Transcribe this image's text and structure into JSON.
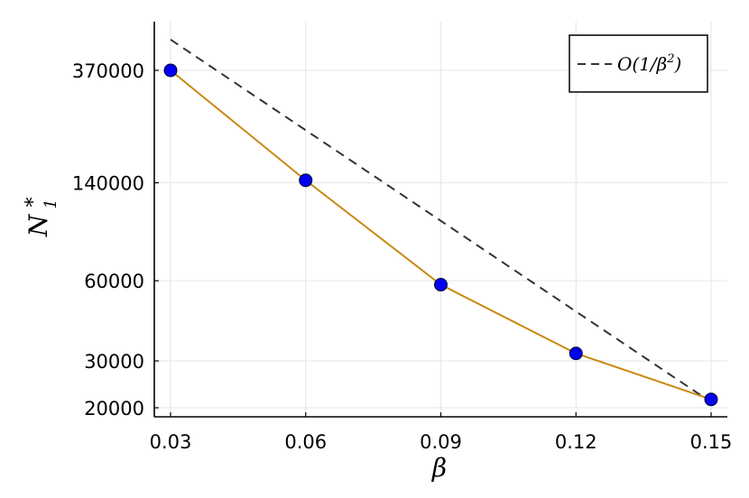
{
  "chart_data": {
    "type": "line",
    "xscale": "linear",
    "yscale": "log",
    "xlabel": "β",
    "ylabel": "N",
    "ylabel_sup": "*",
    "ylabel_sub": "1",
    "xticks": [
      0.03,
      0.06,
      0.09,
      0.12,
      0.15
    ],
    "xtick_labels": [
      "0.03",
      "0.06",
      "0.09",
      "0.12",
      "0.15"
    ],
    "yticks": [
      20000,
      30000,
      60000,
      140000,
      370000
    ],
    "ytick_labels": [
      "20000",
      "30000",
      "60000",
      "140000",
      "370000"
    ],
    "xlim": [
      0.025,
      0.155
    ],
    "ylim": [
      19000,
      520000
    ],
    "grid": true,
    "legend_position": "top-right",
    "series": [
      {
        "style": "solid",
        "color": "#c98810",
        "marker": "circle",
        "marker_color": "#0000f0",
        "x": [
          0.03,
          0.06,
          0.09,
          0.12,
          0.15
        ],
        "y": [
          370000,
          143000,
          58000,
          32000,
          21500
        ]
      },
      {
        "name": "O(1/β²)",
        "name_parts": {
          "prefix": "O(1/β",
          "sup": "2",
          "suffix": ")"
        },
        "style": "dashed",
        "color": "#333333",
        "x": [
          0.03,
          0.15
        ],
        "y": [
          483000,
          21000
        ]
      }
    ]
  }
}
